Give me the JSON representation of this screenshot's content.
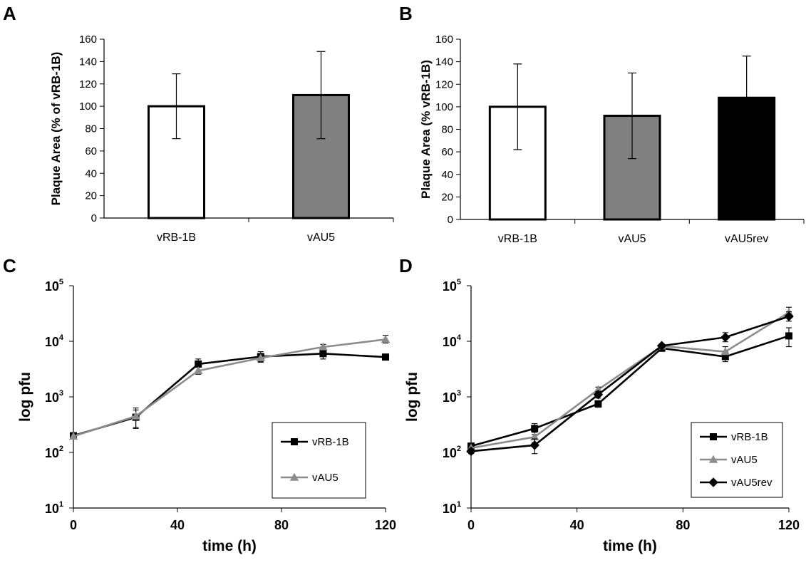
{
  "colors": {
    "white_bar": "#ffffff",
    "gray_bar": "#808080",
    "black_bar": "#000000",
    "series_black": "#000000",
    "series_gray": "#8c8c8c"
  },
  "chart_data": [
    {
      "panel": "A",
      "type": "bar",
      "ylabel": "Plaque Area (% of vRB-1B)",
      "categories": [
        "vRB-1B",
        "vAU5"
      ],
      "values": [
        100,
        110
      ],
      "errors": [
        29,
        39
      ],
      "bar_colors": [
        "#ffffff",
        "#808080"
      ],
      "ylim": [
        0,
        160
      ],
      "yticks": [
        0,
        20,
        40,
        60,
        80,
        100,
        120,
        140,
        160
      ]
    },
    {
      "panel": "B",
      "type": "bar",
      "ylabel": "Plaque Area (% vRB-1B)",
      "categories": [
        "vRB-1B",
        "vAU5",
        "vAU5rev"
      ],
      "values": [
        100,
        92,
        108
      ],
      "errors": [
        38,
        38,
        37
      ],
      "bar_colors": [
        "#ffffff",
        "#808080",
        "#000000"
      ],
      "ylim": [
        0,
        160
      ],
      "yticks": [
        0,
        20,
        40,
        60,
        80,
        100,
        120,
        140,
        160
      ]
    },
    {
      "panel": "C",
      "type": "line",
      "xlabel": "time (h)",
      "ylabel": "log pfu",
      "yscale": "log",
      "xlim": [
        0,
        120
      ],
      "xticks": [
        0,
        40,
        80,
        120
      ],
      "ylim": [
        10,
        100000
      ],
      "ytick_exponents": [
        1,
        2,
        3,
        4,
        5
      ],
      "legend_position": "lower-right",
      "x": [
        0,
        24,
        48,
        72,
        96,
        120
      ],
      "series": [
        {
          "name": "vRB-1B",
          "marker": "square",
          "color": "#000000",
          "values": [
            200,
            430,
            3900,
            5300,
            6000,
            5200
          ],
          "err_up": [
            15,
            150,
            900,
            1200,
            1300,
            400
          ],
          "err_down": [
            15,
            150,
            500,
            1000,
            1200,
            400
          ]
        },
        {
          "name": "vAU5",
          "marker": "triangle",
          "color": "#8c8c8c",
          "values": [
            195,
            450,
            2950,
            5000,
            7900,
            10800
          ],
          "err_up": [
            15,
            180,
            500,
            1000,
            900,
            2000
          ],
          "err_down": [
            15,
            180,
            400,
            800,
            800,
            1500
          ]
        }
      ]
    },
    {
      "panel": "D",
      "type": "line",
      "xlabel": "time (h)",
      "ylabel": "log pfu",
      "yscale": "log",
      "xlim": [
        0,
        120
      ],
      "xticks": [
        0,
        40,
        80,
        120
      ],
      "ylim": [
        10,
        100000
      ],
      "ytick_exponents": [
        1,
        2,
        3,
        4,
        5
      ],
      "legend_position": "lower-right",
      "x": [
        0,
        24,
        48,
        72,
        96,
        120
      ],
      "series": [
        {
          "name": "vRB-1B",
          "marker": "square",
          "color": "#000000",
          "values": [
            130,
            270,
            750,
            7500,
            5300,
            12500
          ],
          "err_up": [
            10,
            60,
            100,
            800,
            1200,
            5000
          ],
          "err_down": [
            10,
            60,
            100,
            700,
            1000,
            4500
          ]
        },
        {
          "name": "vAU5",
          "marker": "triangle",
          "color": "#8c8c8c",
          "values": [
            120,
            190,
            1350,
            8200,
            6500,
            33000
          ],
          "err_up": [
            10,
            40,
            150,
            700,
            1500,
            8000
          ],
          "err_down": [
            10,
            40,
            150,
            700,
            1200,
            7000
          ]
        },
        {
          "name": "vAU5rev",
          "marker": "diamond",
          "color": "#000000",
          "values": [
            105,
            135,
            1100,
            8300,
            11800,
            28000
          ],
          "err_up": [
            10,
            40,
            150,
            600,
            2500,
            6000
          ],
          "err_down": [
            10,
            40,
            150,
            600,
            2000,
            5000
          ]
        }
      ]
    }
  ]
}
